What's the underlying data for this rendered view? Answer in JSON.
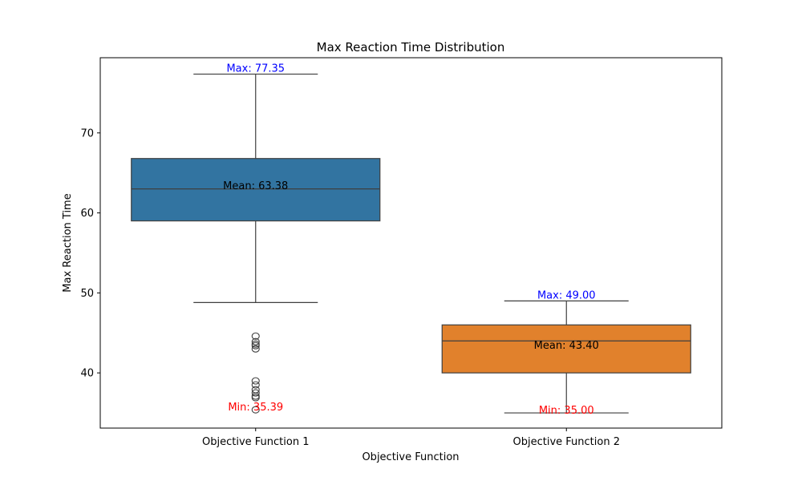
{
  "chart_data": {
    "type": "box",
    "title": "Max Reaction Time Distribution",
    "xlabel": "Objective Function",
    "ylabel": "Max Reaction Time",
    "ylim": [
      33.1,
      79.4
    ],
    "yticks": [
      40,
      50,
      60,
      70
    ],
    "grid": false,
    "colors": {
      "box_label_max": "#0000ff",
      "box_label_min": "#ff0000",
      "box_label_mean": "#000000"
    },
    "categories": [
      {
        "name": "Objective Function 1",
        "color": "#3274a1",
        "whisker_low": 48.8,
        "q1": 59.0,
        "median": 63.0,
        "q3": 66.8,
        "whisker_high": 77.35,
        "outliers": [
          44.6,
          43.9,
          43.6,
          43.4,
          43.0,
          39.0,
          38.5,
          37.9,
          37.5,
          37.1,
          36.9,
          35.39
        ],
        "max_label": "Max: 77.35",
        "min_label": "Min: 35.39",
        "mean_label": "Mean: 63.38",
        "max_value": 77.35,
        "min_value": 35.39,
        "mean_value": 63.38
      },
      {
        "name": "Objective Function 2",
        "color": "#e1812c",
        "whisker_low": 35.0,
        "q1": 40.0,
        "median": 44.0,
        "q3": 46.0,
        "whisker_high": 49.0,
        "outliers": [],
        "max_label": "Max: 49.00",
        "min_label": "Min: 35.00",
        "mean_label": "Mean: 43.40",
        "max_value": 49.0,
        "min_value": 35.0,
        "mean_value": 43.4
      }
    ]
  }
}
